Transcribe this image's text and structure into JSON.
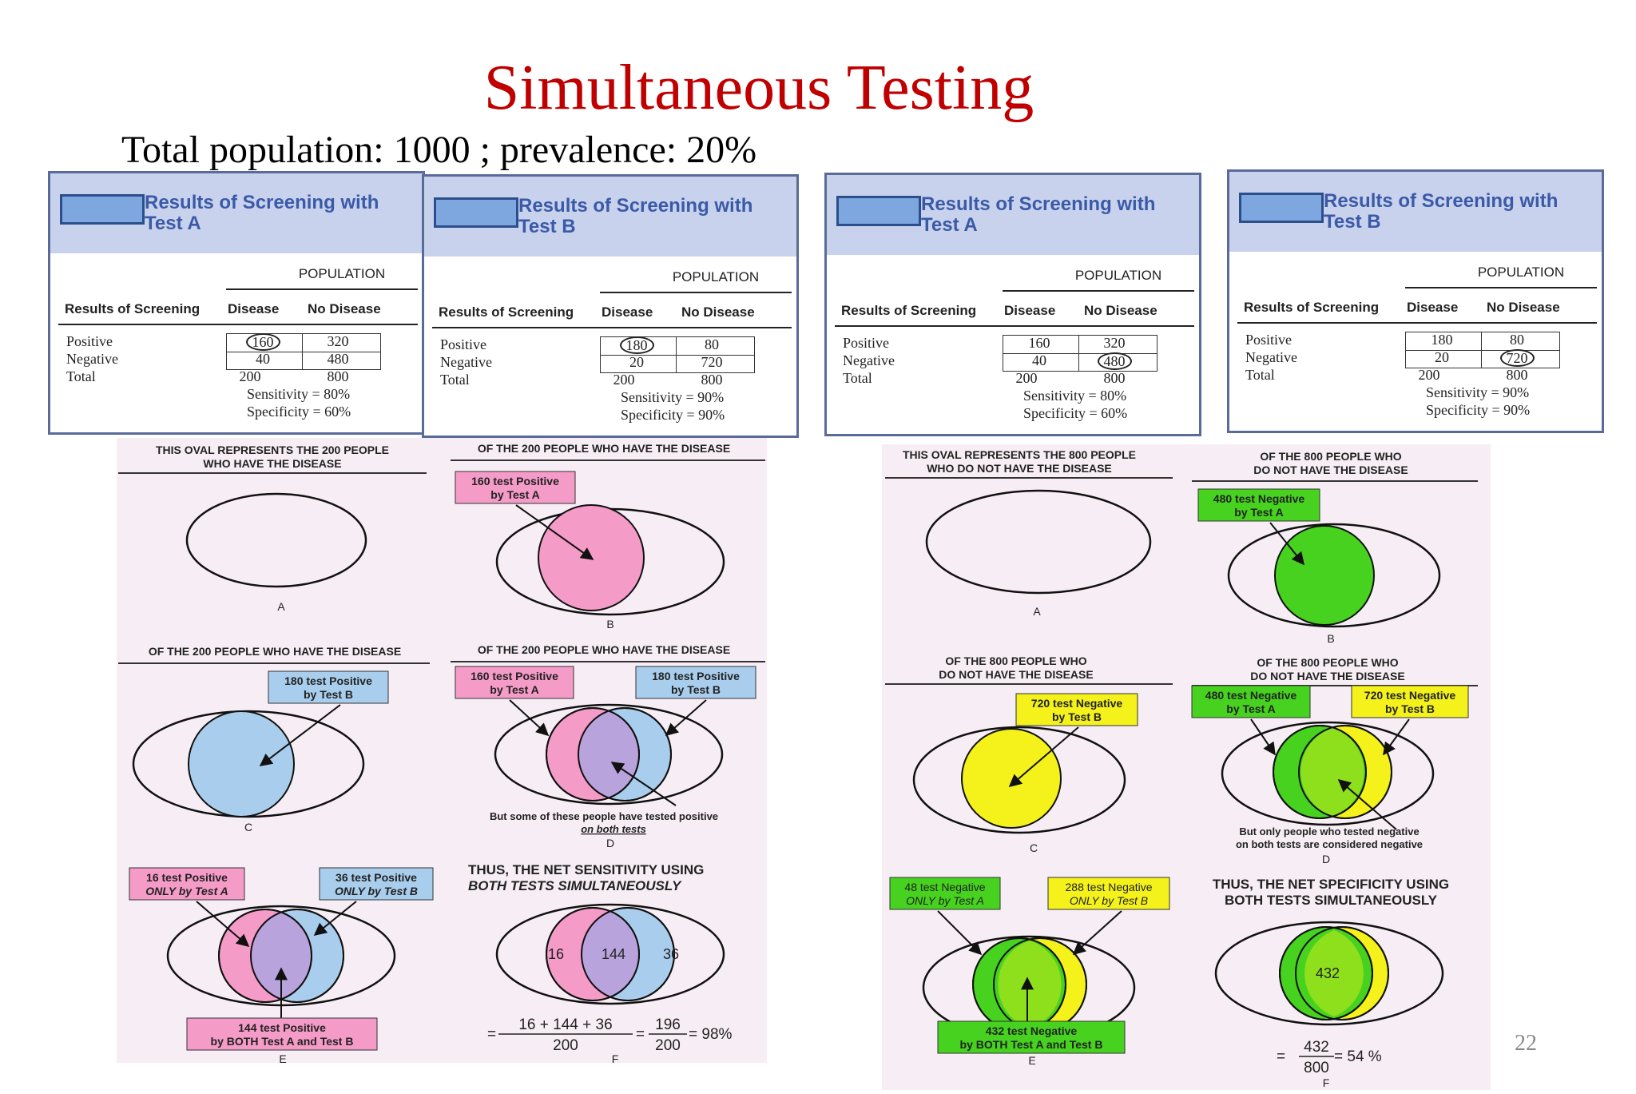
{
  "slide": {
    "title": "Simultaneous Testing",
    "subtitle": "Total population: 1000 ; prevalence: 20%",
    "page_number": "22"
  },
  "tables": [
    {
      "title": "Results of Screening with Test A",
      "population": "POPULATION",
      "col_label": "Results of Screening",
      "col_disease": "Disease",
      "col_no_disease": "No Disease",
      "row_positive": "Positive",
      "row_negative": "Negative",
      "row_total": "Total",
      "pos_d": "160",
      "pos_nd": "320",
      "neg_d": "40",
      "neg_nd": "480",
      "tot_d": "200",
      "tot_nd": "800",
      "sensitivity": "Sensitivity = 80%",
      "specificity": "Specificity = 60%",
      "circled": "pos_d"
    },
    {
      "title": "Results of Screening with Test B",
      "population": "POPULATION",
      "col_label": "Results of Screening",
      "col_disease": "Disease",
      "col_no_disease": "No Disease",
      "row_positive": "Positive",
      "row_negative": "Negative",
      "row_total": "Total",
      "pos_d": "180",
      "pos_nd": "80",
      "neg_d": "20",
      "neg_nd": "720",
      "tot_d": "200",
      "tot_nd": "800",
      "sensitivity": "Sensitivity = 90%",
      "specificity": "Specificity = 90%",
      "circled": "pos_d"
    },
    {
      "title": "Results of Screening with Test A",
      "population": "POPULATION",
      "col_label": "Results of Screening",
      "col_disease": "Disease",
      "col_no_disease": "No Disease",
      "row_positive": "Positive",
      "row_negative": "Negative",
      "row_total": "Total",
      "pos_d": "160",
      "pos_nd": "320",
      "neg_d": "40",
      "neg_nd": "480",
      "tot_d": "200",
      "tot_nd": "800",
      "sensitivity": "Sensitivity = 80%",
      "specificity": "Specificity = 60%",
      "circled": "neg_nd"
    },
    {
      "title": "Results of Screening with Test B",
      "population": "POPULATION",
      "col_label": "Results of Screening",
      "col_disease": "Disease",
      "col_no_disease": "No Disease",
      "row_positive": "Positive",
      "row_negative": "Negative",
      "row_total": "Total",
      "pos_d": "180",
      "pos_nd": "80",
      "neg_d": "20",
      "neg_nd": "720",
      "tot_d": "200",
      "tot_nd": "800",
      "sensitivity": "Sensitivity = 90%",
      "specificity": "Specificity = 90%",
      "circled": "neg_nd"
    }
  ],
  "sensitivity_panel": {
    "a_heading_1": "THIS OVAL REPRESENTS THE 200 PEOPLE",
    "a_heading_2": "WHO HAVE THE DISEASE",
    "a_letter": "A",
    "b_heading": "OF THE 200 PEOPLE WHO HAVE THE DISEASE",
    "b_label_1": "160 test Positive",
    "b_label_2": "by Test A",
    "b_letter": "B",
    "c_heading": "OF THE 200 PEOPLE WHO HAVE THE DISEASE",
    "c_label_1": "180 test Positive",
    "c_label_2": "by Test B",
    "c_letter": "C",
    "d_heading": "OF THE 200 PEOPLE WHO HAVE THE DISEASE",
    "d_label_a_1": "160 test Positive",
    "d_label_a_2": "by Test A",
    "d_label_b_1": "180 test Positive",
    "d_label_b_2": "by Test B",
    "d_note_1": "But some of these people have tested positive",
    "d_note_2": "on both tests",
    "d_letter": "D",
    "e_label_a_1": "16 test Positive",
    "e_label_a_2": "ONLY by Test A",
    "e_label_b_1": "36 test Positive",
    "e_label_b_2": "ONLY by Test B",
    "e_label_both_1": "144 test Positive",
    "e_label_both_2": "by BOTH Test A and Test B",
    "e_letter": "E",
    "f_heading_1": "THUS, THE NET SENSITIVITY USING",
    "f_heading_2": "BOTH TESTS SIMULTANEOUSLY",
    "f_left": "16",
    "f_mid": "144",
    "f_right": "36",
    "f_eq": "=",
    "f_num": "16 + 144 + 36",
    "f_den": "200",
    "f_eq2": "=",
    "f_num2": "196",
    "f_den2": "200",
    "f_result": "= 98%",
    "f_letter": "F"
  },
  "specificity_panel": {
    "a_heading_1": "THIS OVAL REPRESENTS THE 800 PEOPLE",
    "a_heading_2": "WHO DO NOT HAVE THE DISEASE",
    "a_letter": "A",
    "b_heading_1": "OF THE 800 PEOPLE WHO",
    "b_heading_2": "DO NOT HAVE THE DISEASE",
    "b_label_1": "480 test Negative",
    "b_label_2": "by Test A",
    "b_letter": "B",
    "c_heading_1": "OF THE 800 PEOPLE WHO",
    "c_heading_2": "DO NOT HAVE THE DISEASE",
    "c_label_1": "720 test Negative",
    "c_label_2": "by Test B",
    "c_letter": "C",
    "d_heading_1": "OF THE 800 PEOPLE WHO",
    "d_heading_2": "DO NOT HAVE THE DISEASE",
    "d_label_a_1": "480 test Negative",
    "d_label_a_2": "by Test A",
    "d_label_b_1": "720 test Negative",
    "d_label_b_2": "by Test B",
    "d_note_1": "But only people who tested negative",
    "d_note_2": "on both tests are considered negative",
    "d_letter": "D",
    "e_label_a_1": "48 test Negative",
    "e_label_a_2": "ONLY by Test A",
    "e_label_b_1": "288 test Negative",
    "e_label_b_2": "ONLY by Test B",
    "e_label_both_1": "432 test Negative",
    "e_label_both_2": "by BOTH Test A and Test B",
    "e_letter": "E",
    "f_heading_1": "THUS, THE NET SPECIFICITY USING",
    "f_heading_2": "BOTH TESTS SIMULTANEOUSLY",
    "f_mid": "432",
    "f_eq": "=",
    "f_num": "432",
    "f_den": "800",
    "f_result": "= 54 %",
    "f_letter": "F"
  },
  "colors": {
    "title_red": "#c00000",
    "pink": "#f59bc8",
    "blue": "#a9cdec",
    "purple": "#b9a3dd",
    "green": "#46d21e",
    "yellow": "#f4f21a",
    "lime": "#8fe01c",
    "table_header": "#c9d2ec"
  }
}
